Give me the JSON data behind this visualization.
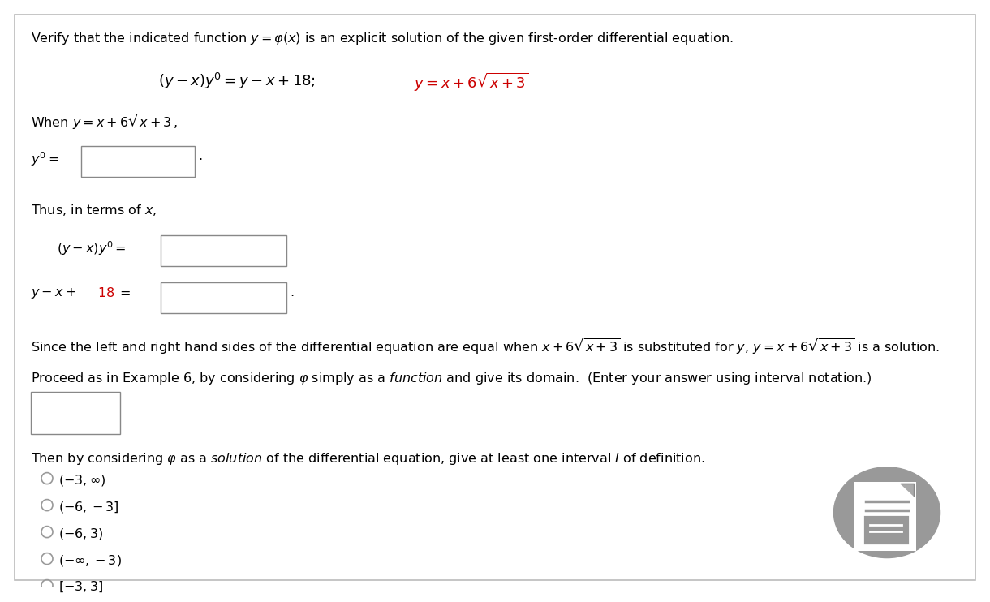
{
  "bg_color": "#ffffff",
  "border_color": "#bbbbbb",
  "text_color": "#000000",
  "red_color": "#cc0000",
  "box_edge_color": "#888888",
  "font_size_title": 11.5,
  "font_size_eq": 13,
  "font_size_body": 11.5,
  "font_size_options": 11.5,
  "icon_bg_color": "#999999",
  "options": [
    "(-3, ∞)",
    "(-6, -3]",
    "(-6, 3)",
    "(-∞, -3)",
    "[-3, 3]"
  ]
}
